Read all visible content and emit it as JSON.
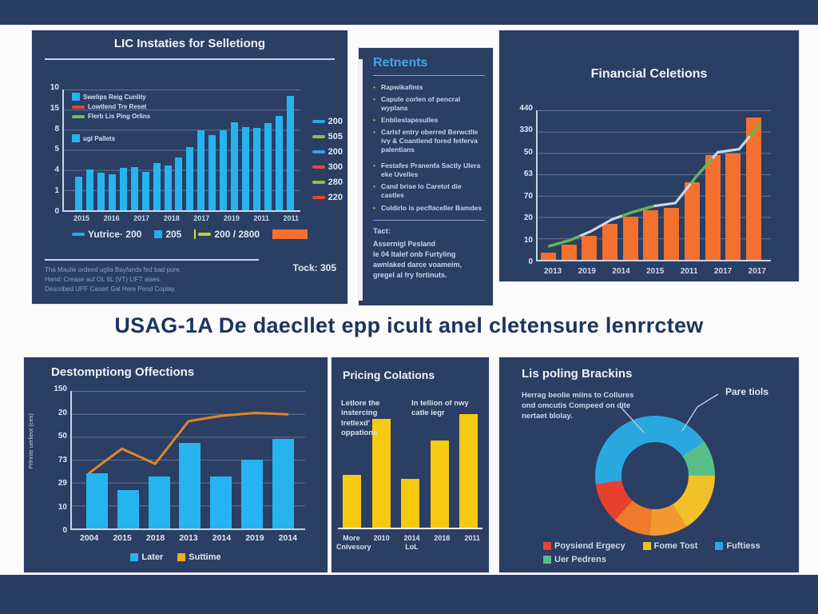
{
  "page": {
    "band_title": "USAG-1A De daecllet epp icult anel cletensure lenrrctew"
  },
  "colors": {
    "panel_bg": "#2b3e63",
    "cyan": "#25b4ef",
    "orange": "#f4702c",
    "yellow": "#f7ca12",
    "line_orange": "#e0862b",
    "green": "#6abf69",
    "red": "#e04a38",
    "accent_blue": "#3fa9e0",
    "title_navy": "#1c3462"
  },
  "panel1": {
    "title": "LIC Instaties for Selletiong",
    "inner_legend": [
      {
        "swatch": "square",
        "color": "#25b4ef",
        "label": "Swelips Reig Cunlity"
      },
      {
        "swatch": "dash",
        "color": "#e04a38",
        "label": "Lowtlend Tre Reset"
      },
      {
        "swatch": "dash",
        "color": "#6abf69",
        "label": "Flerb Lis Ping Orlins"
      }
    ],
    "inner_legend2": [
      {
        "swatch": "square",
        "color": "#25b4ef",
        "label": "ugl Pallets"
      }
    ],
    "right_legend": [
      {
        "color": "#2da8e8",
        "label": "200"
      },
      {
        "color": "#8bc34a",
        "label": "505"
      },
      {
        "color": "#2da8e8",
        "label": "200"
      },
      {
        "color": "#e04a38",
        "label": "300"
      },
      {
        "color": "#8bc34a",
        "label": "280"
      },
      {
        "color": "#e04a38",
        "label": "220"
      }
    ],
    "bottom_legend": [
      {
        "swatch": "dash",
        "color": "#2da8e8",
        "label": "Yutrice· 200"
      },
      {
        "swatch": "square",
        "color": "#2da8e8",
        "label": "205"
      },
      {
        "swatch": "tickdash",
        "color": "#c3d12f",
        "label": "200 / 2800"
      },
      {
        "swatch": "barsw",
        "color": "#f4702c",
        "label": ""
      }
    ],
    "footnote_lines": [
      "Tha Maulie ordeed uglia Bayfands fed bad pure.",
      "Hand: Crease auf OL 6L (VT) LIFT alaes.",
      "Described UPF Casert Gal Here Pend Coplay."
    ],
    "total_label": "Tock: 305"
  },
  "panel2": {
    "title": "Retnents",
    "bullets": [
      "Rapwikafints",
      "Capule corlen of pencral wyplans",
      "Enblieslapesulles",
      "Carlsf entry oberred Berwctlle ivy & Coantlend fored fetferva palentians",
      "Festafes Pranenfa Sactly Ulera eke Uvelles",
      "Cand brise lo Caretot die castles",
      "Culdirlo is pecflaceller Bamdes"
    ],
    "footer_heading": "Tact:",
    "footer_lines": [
      "Assernigl Pesland",
      "le 04 Italef onb Furtyling",
      "awnlaked darce voameim,",
      "gregel al fry fortinuts."
    ]
  },
  "panel3": {
    "title": "Financial Celetions"
  },
  "panel4": {
    "title": "Destomptiong Offections",
    "y_label": "Prlnnte uerlieot (ces)",
    "legend": [
      {
        "color": "#25b4ef",
        "label": "Later"
      },
      {
        "color": "#f0ad1e",
        "label": "Suttime"
      }
    ]
  },
  "panel5": {
    "title": "Pricing Colations",
    "note_left": "Letlore the instercing lretlexd' oppations",
    "note_right": "In tellion of nwy catle iegr"
  },
  "panel6": {
    "title": "Lis poling Brackins",
    "note": "Herrag beolie miins to Collures ond omcutis Compeed on dite nertaet blolay.",
    "callout": "Pare tiols",
    "legend": [
      {
        "color": "#e8402f",
        "label": "Poysiend Ergecy"
      },
      {
        "color": "#f2c029",
        "label": "Fome Tost"
      },
      {
        "color": "#29a8e0",
        "label": "Fuftiess"
      },
      {
        "color": "#58bf8a",
        "label": "Uer Pedrens"
      }
    ]
  },
  "chart_data": [
    {
      "id": "top_left_bars",
      "type": "bar",
      "title": "LIC Instaties for Selletiong",
      "y_ticks": [
        "10",
        "15",
        "8",
        "5",
        "4",
        "1",
        "0"
      ],
      "x_ticks": [
        "2015",
        "2016",
        "2017",
        "2018",
        "2017",
        "2019",
        "2011",
        "2011"
      ],
      "values": [
        28,
        34,
        31,
        30,
        35,
        36,
        32,
        39,
        37,
        44,
        52,
        66,
        62,
        66,
        73,
        69,
        68,
        72,
        78,
        95
      ],
      "ylim": [
        0,
        100
      ],
      "bar_color": "#25b4ef",
      "grid": true,
      "note": "axis text is garbled; values are % of plot height"
    },
    {
      "id": "top_right_bars_line",
      "type": "bar",
      "title": "Financial Celetions",
      "y_ticks": [
        "440",
        "330",
        "50",
        "63",
        "70",
        "20",
        "10",
        "0"
      ],
      "x_ticks": [
        "2013",
        "2019",
        "2014",
        "2015",
        "2011",
        "2017",
        "2017"
      ],
      "values": [
        5,
        10,
        16,
        24,
        29,
        33,
        35,
        52,
        70,
        71,
        95
      ],
      "line_values": [
        9,
        13,
        19,
        27,
        32,
        36,
        38,
        56,
        72,
        74,
        91
      ],
      "ylim": [
        0,
        100
      ],
      "bar_color": "#f4702c",
      "line_colors": [
        "#cdd5e8",
        "#62b54f"
      ],
      "grid": true
    },
    {
      "id": "bottom_left_bars_line",
      "type": "bar",
      "title": "Destomptiong Offections",
      "y_ticks": [
        "150",
        "20",
        "50",
        "73",
        "29",
        "10",
        "0"
      ],
      "x_ticks": [
        "2004",
        "2015",
        "2018",
        "2013",
        "2014",
        "2019",
        "2014"
      ],
      "values": [
        40,
        28,
        38,
        62,
        38,
        50,
        65
      ],
      "line_values": [
        40,
        58,
        47,
        78,
        82,
        84,
        83
      ],
      "ylim": [
        0,
        100
      ],
      "bar_color": "#25b4ef",
      "line_colors": [
        "#e0862b"
      ],
      "grid": true
    },
    {
      "id": "bottom_middle_bars",
      "type": "bar",
      "title": "Pricing Colations",
      "x_ticks": [
        "More Cnivesory",
        "2010",
        "2014 LoL",
        "2018",
        "2011"
      ],
      "values": [
        44,
        91,
        41,
        73,
        95
      ],
      "ylim": [
        0,
        100
      ],
      "bar_color": "#f7ca12",
      "grid": false
    },
    {
      "id": "bottom_right_donut",
      "type": "pie",
      "title": "Lis poling Brackins",
      "donut": true,
      "from_deg": 262,
      "slices": [
        {
          "label": "Fuftiess",
          "color": "#29a8e0",
          "pct": 42.5
        },
        {
          "label": "Uer Pedrens",
          "color": "#58bf8a",
          "pct": 9.7
        },
        {
          "label": "Fome Tost",
          "color": "#f2c029",
          "pct": 16.1
        },
        {
          "label": "orange light segment",
          "color": "#f2992f",
          "pct": 10.3
        },
        {
          "label": "orange segment",
          "color": "#ee7a2b",
          "pct": 10.3
        },
        {
          "label": "Poysiend Ergecy",
          "color": "#e8402f",
          "pct": 11.1
        }
      ]
    }
  ]
}
